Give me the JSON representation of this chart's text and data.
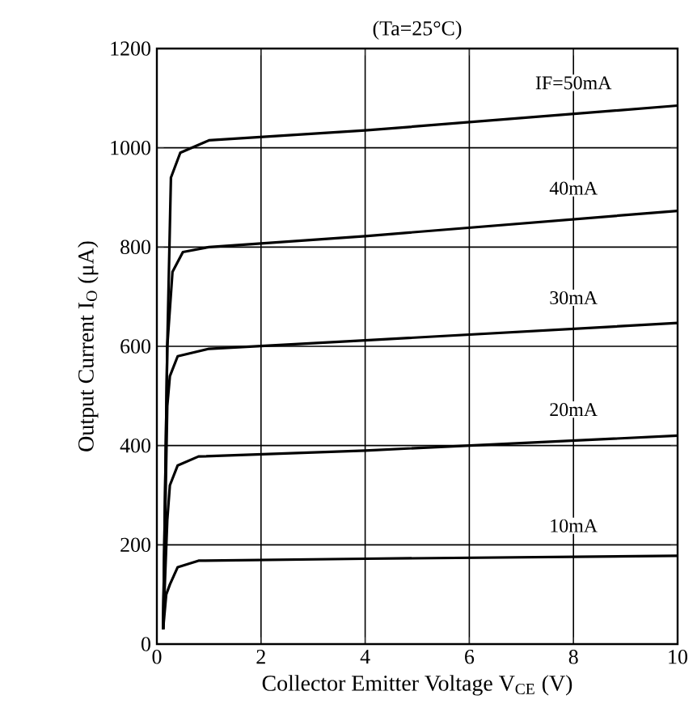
{
  "chart_data": {
    "type": "line",
    "title": "(Ta=25°C)",
    "xlabel": "Collector Emitter Voltage V$_{CE}$ (V)",
    "ylabel": "Output Current I$_{O}$ (μA)",
    "xlim": [
      0,
      10
    ],
    "ylim": [
      0,
      1200
    ],
    "xticks": [
      0,
      2,
      4,
      6,
      8,
      10
    ],
    "yticks": [
      0,
      200,
      400,
      600,
      800,
      1000,
      1200
    ],
    "grid": true,
    "marker": "none",
    "line_style": "solid",
    "series": [
      {
        "name": "IF=50mA",
        "color": "#000000",
        "x": [
          0.12,
          0.2,
          0.27,
          0.45,
          1,
          4,
          10
        ],
        "values": [
          30,
          600,
          940,
          990,
          1015,
          1035,
          1085
        ]
      },
      {
        "name": "40mA",
        "color": "#000000",
        "x": [
          0.12,
          0.2,
          0.3,
          0.5,
          1,
          4,
          10
        ],
        "values": [
          30,
          600,
          750,
          790,
          800,
          822,
          873
        ]
      },
      {
        "name": "30mA",
        "color": "#000000",
        "x": [
          0.12,
          0.2,
          0.25,
          0.4,
          1,
          4,
          10
        ],
        "values": [
          30,
          480,
          540,
          580,
          595,
          612,
          647
        ]
      },
      {
        "name": "20mA",
        "color": "#000000",
        "x": [
          0.12,
          0.2,
          0.25,
          0.4,
          0.8,
          4,
          10
        ],
        "values": [
          30,
          250,
          320,
          360,
          378,
          390,
          420
        ]
      },
      {
        "name": "10mA",
        "color": "#000000",
        "x": [
          0.12,
          0.18,
          0.25,
          0.4,
          0.8,
          4,
          10
        ],
        "values": [
          30,
          100,
          120,
          155,
          168,
          172,
          178
        ]
      }
    ]
  }
}
